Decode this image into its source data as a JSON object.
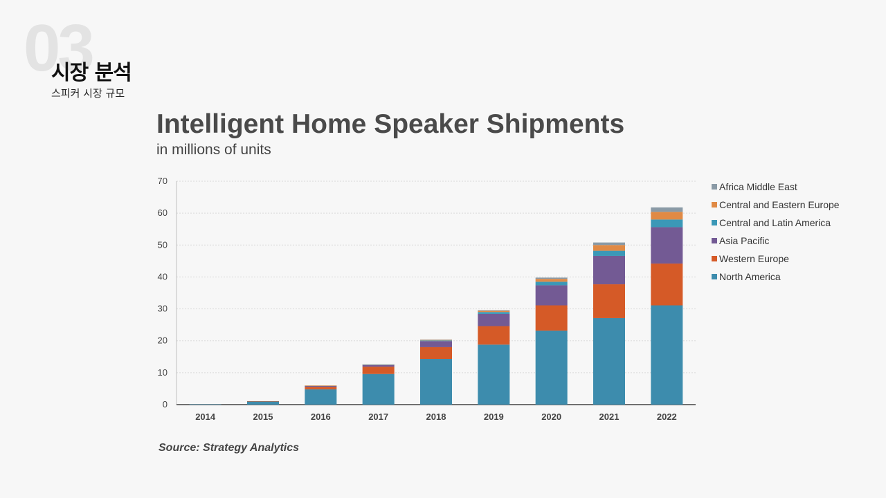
{
  "header": {
    "section_number": "03",
    "section_title": "시장 분석",
    "section_subtitle": "스피커 시장 규모"
  },
  "source_text": "Source: Strategy Analytics",
  "chart_data": {
    "type": "bar",
    "stacked": true,
    "title": "Intelligent Home Speaker Shipments",
    "subtitle": "in millions of units",
    "xlabel": "",
    "ylabel": "",
    "ylim": [
      0,
      70
    ],
    "yticks": [
      0,
      10,
      20,
      30,
      40,
      50,
      60,
      70
    ],
    "grid": "horizontal-dotted",
    "legend_position": "right",
    "categories": [
      "2014",
      "2015",
      "2016",
      "2017",
      "2018",
      "2019",
      "2020",
      "2021",
      "2022"
    ],
    "series": [
      {
        "name": "North America",
        "color": "#3d8cad",
        "values": [
          0.1,
          1.0,
          4.8,
          9.6,
          14.3,
          18.8,
          23.2,
          27.1,
          31.1
        ]
      },
      {
        "name": "Western Europe",
        "color": "#d55a27",
        "values": [
          0,
          0.1,
          0.8,
          2.3,
          3.7,
          5.8,
          7.9,
          10.6,
          13.1
        ]
      },
      {
        "name": "Asia Pacific",
        "color": "#735a94",
        "values": [
          0,
          0,
          0.3,
          0.5,
          1.9,
          3.8,
          6.3,
          8.9,
          11.4
        ]
      },
      {
        "name": "Central and Latin America",
        "color": "#3b98b7",
        "values": [
          0,
          0,
          0.05,
          0.1,
          0.2,
          0.6,
          1.1,
          1.6,
          2.4
        ]
      },
      {
        "name": "Central and Eastern Europe",
        "color": "#e08a45",
        "values": [
          0,
          0,
          0.05,
          0.05,
          0.2,
          0.4,
          0.9,
          1.8,
          2.4
        ]
      },
      {
        "name": "Africa Middle East",
        "color": "#8a9aa6",
        "values": [
          0,
          0,
          0,
          0.05,
          0.1,
          0.2,
          0.4,
          0.8,
          1.4
        ]
      }
    ]
  }
}
